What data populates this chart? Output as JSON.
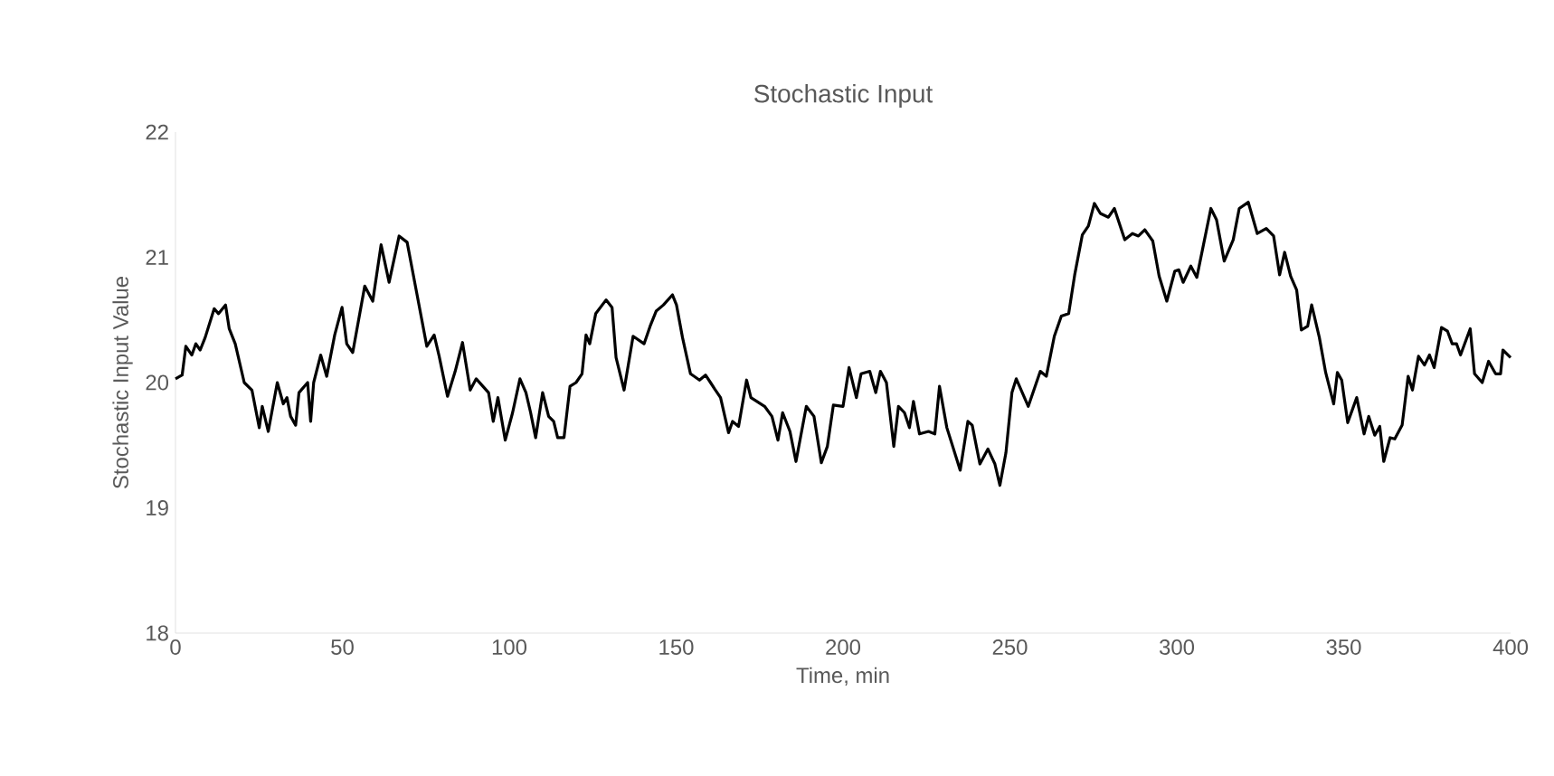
{
  "chart_data": {
    "type": "line",
    "title": "Stochastic Input",
    "xlabel": "Time, min",
    "ylabel": "Stochastic Input Value",
    "xlim": [
      0,
      400
    ],
    "xticks": [
      0,
      50,
      100,
      150,
      200,
      250,
      300,
      350,
      400
    ],
    "ylim": [
      18,
      22
    ],
    "yticks": [
      18,
      19,
      20,
      21,
      22
    ],
    "series": [
      {
        "color": "#000000",
        "x": [
          0,
          2,
          3.1,
          4.9,
          6.1,
          7.4,
          8.9,
          11.6,
          12.9,
          15,
          16.1,
          17.9,
          20.6,
          22.9,
          25.1,
          26,
          27.8,
          30.5,
          32.3,
          33.4,
          34.5,
          36,
          37,
          39.6,
          40.5,
          41.4,
          43.5,
          45.3,
          47.7,
          49.9,
          51.3,
          53.1,
          56.7,
          59.1,
          61.6,
          64,
          67,
          69.4,
          72.1,
          75.3,
          77.5,
          79,
          81.5,
          83.8,
          86,
          88.3,
          90.1,
          93.8,
          95.2,
          96.6,
          98.8,
          101,
          103.2,
          105,
          106.4,
          107.9,
          110,
          111.8,
          113.3,
          114.5,
          116.4,
          118.2,
          120,
          121.8,
          123,
          124.1,
          125.9,
          129,
          130.8,
          132,
          134.4,
          137.1,
          140.4,
          142.2,
          144,
          146.2,
          148.9,
          150.1,
          151.9,
          154.3,
          157,
          158.8,
          160.3,
          161.5,
          163.3,
          165.7,
          166.9,
          168.7,
          171.1,
          172.4,
          174.2,
          176.5,
          178.7,
          180.5,
          181.9,
          184.1,
          185.9,
          189,
          191.3,
          193.5,
          195.3,
          197.1,
          200,
          201.8,
          204,
          205.4,
          208,
          209.8,
          211.2,
          213,
          215.2,
          216.6,
          218.4,
          219.9,
          221.1,
          222.9,
          225.6,
          227.5,
          228.9,
          231.1,
          235.1,
          237.4,
          238.7,
          241,
          243.4,
          245.5,
          247,
          248.8,
          250.6,
          251.9,
          255.5,
          259.1,
          260.9,
          263.3,
          265.4,
          267.6,
          269.4,
          271.7,
          273.5,
          275.3,
          277.1,
          279.5,
          281.3,
          284.4,
          286.7,
          288.5,
          290.4,
          292.8,
          294.7,
          297,
          299.4,
          300.6,
          301.9,
          304.2,
          306,
          310.2,
          311.9,
          314.2,
          316.9,
          318.7,
          321.4,
          324.1,
          326.8,
          329,
          330.8,
          332.3,
          334.1,
          335.9,
          337.3,
          339.2,
          340.4,
          342.7,
          344.6,
          347,
          348.1,
          349.4,
          351.2,
          353.9,
          356.1,
          357.5,
          359.3,
          360.8,
          362,
          363.9,
          365.3,
          367.5,
          369.3,
          370.6,
          372.4,
          374.2,
          375.7,
          377.1,
          379.3,
          381.1,
          382.5,
          383.8,
          385,
          387.9,
          389.2,
          391.5,
          393.4,
          395.5,
          397,
          397.7,
          400
        ],
        "values": [
          20.03,
          20.06,
          20.29,
          20.22,
          20.31,
          20.26,
          20.36,
          20.59,
          20.55,
          20.62,
          20.43,
          20.31,
          20.0,
          19.94,
          19.64,
          19.81,
          19.61,
          20.0,
          19.83,
          19.88,
          19.73,
          19.66,
          19.92,
          20.0,
          19.69,
          20.0,
          20.22,
          20.05,
          20.38,
          20.6,
          20.31,
          20.24,
          20.77,
          20.65,
          21.1,
          20.8,
          21.17,
          21.12,
          20.74,
          20.29,
          20.38,
          20.21,
          19.89,
          20.09,
          20.32,
          19.94,
          20.03,
          19.92,
          19.69,
          19.88,
          19.54,
          19.76,
          20.03,
          19.92,
          19.76,
          19.56,
          19.92,
          19.73,
          19.69,
          19.56,
          19.56,
          19.97,
          20.0,
          20.07,
          20.38,
          20.31,
          20.55,
          20.66,
          20.6,
          20.2,
          19.94,
          20.37,
          20.31,
          20.45,
          20.57,
          20.62,
          20.7,
          20.62,
          20.36,
          20.07,
          20.02,
          20.06,
          20.0,
          19.95,
          19.88,
          19.6,
          19.69,
          19.65,
          20.02,
          19.88,
          19.85,
          19.81,
          19.73,
          19.54,
          19.76,
          19.61,
          19.37,
          19.81,
          19.73,
          19.36,
          19.49,
          19.82,
          19.81,
          20.12,
          19.88,
          20.07,
          20.09,
          19.92,
          20.09,
          20.0,
          19.49,
          19.81,
          19.76,
          19.64,
          19.85,
          19.59,
          19.61,
          19.59,
          19.97,
          19.64,
          19.3,
          19.69,
          19.66,
          19.35,
          19.47,
          19.35,
          19.18,
          19.44,
          19.92,
          20.03,
          19.81,
          20.09,
          20.05,
          20.37,
          20.53,
          20.55,
          20.86,
          21.18,
          21.25,
          21.43,
          21.35,
          21.32,
          21.39,
          21.14,
          21.19,
          21.17,
          21.22,
          21.13,
          20.85,
          20.65,
          20.89,
          20.9,
          20.8,
          20.93,
          20.84,
          21.39,
          21.3,
          20.97,
          21.14,
          21.39,
          21.44,
          21.19,
          21.23,
          21.17,
          20.86,
          21.04,
          20.85,
          20.74,
          20.42,
          20.45,
          20.62,
          20.36,
          20.08,
          19.83,
          20.08,
          20.02,
          19.68,
          19.88,
          19.59,
          19.73,
          19.58,
          19.65,
          19.37,
          19.56,
          19.55,
          19.66,
          20.05,
          19.94,
          20.21,
          20.14,
          20.22,
          20.12,
          20.44,
          20.41,
          20.31,
          20.31,
          20.22,
          20.43,
          20.07,
          20.0,
          20.17,
          20.07,
          20.07,
          20.26,
          20.2
        ]
      }
    ]
  }
}
